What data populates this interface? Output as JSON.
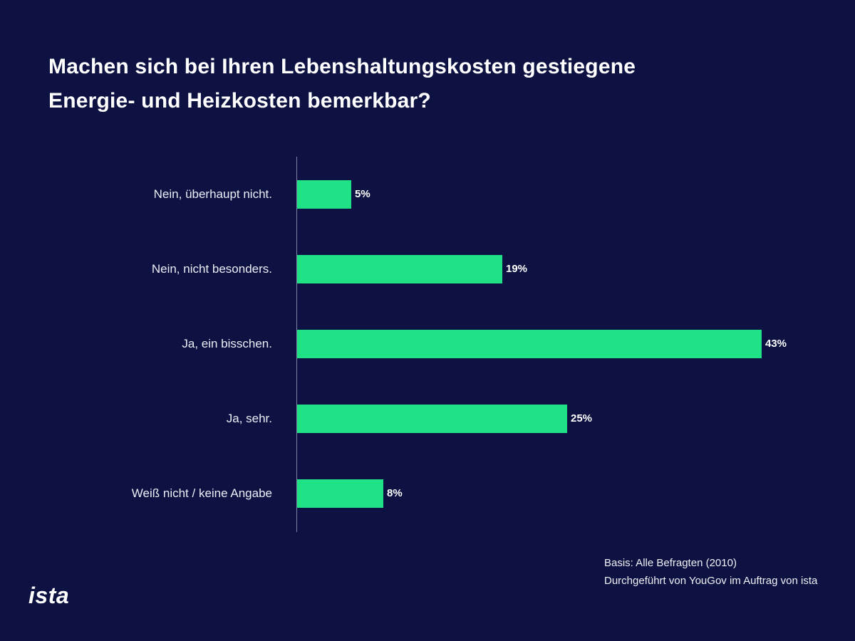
{
  "title": {
    "line1": "Machen sich bei Ihren Lebenshaltungskosten gestiegene",
    "line2": "Energie- und Heizkosten bemerkbar?"
  },
  "chart_data": {
    "type": "bar",
    "orientation": "horizontal",
    "title": "Machen sich bei Ihren Lebenshaltungskosten gestiegene Energie- und Heizkosten bemerkbar?",
    "categories": [
      "Nein, überhaupt nicht.",
      "Nein, nicht besonders.",
      "Ja, ein bisschen.",
      "Ja, sehr.",
      "Weiß nicht / keine Angabe"
    ],
    "values": [
      5,
      19,
      43,
      25,
      8
    ],
    "value_labels": [
      "5%",
      "19%",
      "43%",
      "25%",
      "8%"
    ],
    "xlabel": "",
    "ylabel": "",
    "xlim": [
      0,
      45
    ],
    "grid": false,
    "legend": "none",
    "bar_color": "#1fe287",
    "background_color": "#0d1242"
  },
  "source": {
    "line1": "Basis: Alle Befragten (2010)",
    "line2": "Durchgeführt von YouGov im Auftrag von ista"
  },
  "logo_text": "ista"
}
